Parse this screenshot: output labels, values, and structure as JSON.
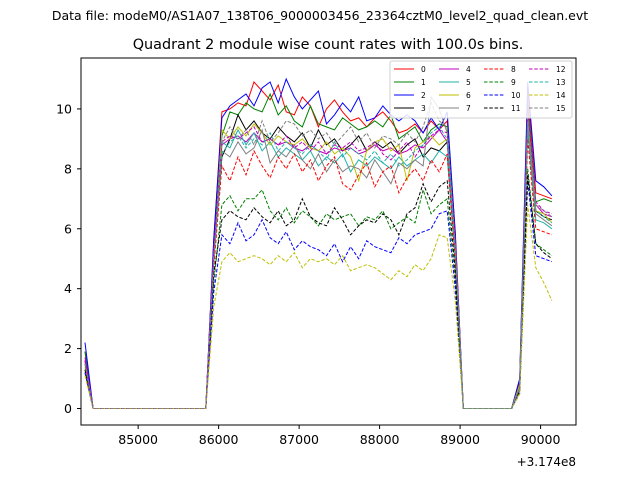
{
  "figure": {
    "suptitle": "Data file: modeM0/AS1A07_138T06_9000003456_23364cztM0_level2_quad_clean.evt",
    "title": "Quadrant 2 module wise count rates with 100.0s bins.",
    "offset_label": "+3.174e8"
  },
  "chart_data": {
    "type": "line",
    "title": "Quadrant 2 module wise count rates with 100.0s bins.",
    "xlabel": "",
    "ylabel": "",
    "x_offset": 317400000,
    "xlim": [
      84290,
      90440
    ],
    "ylim": [
      -0.55,
      11.7
    ],
    "xticks": [
      85000,
      86000,
      87000,
      88000,
      89000,
      90000
    ],
    "xtick_labels": [
      "85000",
      "86000",
      "87000",
      "88000",
      "89000",
      "90000"
    ],
    "yticks": [
      0,
      2,
      4,
      6,
      8,
      10
    ],
    "ytick_labels": [
      "0",
      "2",
      "4",
      "6",
      "8",
      "10"
    ],
    "grid": false,
    "legend_position": "top-right",
    "x": [
      84340,
      84440,
      84540,
      84640,
      84740,
      84840,
      84940,
      85040,
      85140,
      85240,
      85340,
      85440,
      85540,
      85640,
      85740,
      85840,
      85940,
      86040,
      86140,
      86240,
      86340,
      86440,
      86540,
      86640,
      86740,
      86840,
      86940,
      87040,
      87140,
      87240,
      87340,
      87440,
      87540,
      87640,
      87740,
      87840,
      87940,
      88040,
      88140,
      88240,
      88340,
      88440,
      88540,
      88640,
      88740,
      88840,
      88940,
      89040,
      89140,
      89240,
      89340,
      89440,
      89540,
      89640,
      89740,
      89840,
      89940,
      90040,
      90140
    ],
    "series": [
      {
        "name": "0",
        "color": "#ff0000",
        "dash": false,
        "values": [
          1.9,
          0,
          0,
          0,
          0,
          0,
          0,
          0,
          0,
          0,
          0,
          0,
          0,
          0,
          0,
          0,
          5.6,
          9.9,
          10.0,
          10.2,
          10.1,
          10.9,
          10.6,
          10.3,
          10.8,
          9.9,
          9.8,
          10.4,
          10.1,
          9.4,
          10.0,
          10.3,
          9.9,
          9.6,
          9.7,
          9.4,
          9.7,
          9.9,
          9.6,
          9.2,
          9.3,
          9.5,
          9.2,
          9.6,
          9.3,
          9.6,
          5.9,
          0,
          0,
          0,
          0,
          0,
          0,
          0,
          0.9,
          10.6,
          7.2,
          7.1,
          7.0
        ]
      },
      {
        "name": "1",
        "color": "#008000",
        "dash": false,
        "values": [
          1.9,
          0,
          0,
          0,
          0,
          0,
          0,
          0,
          0,
          0,
          0,
          0,
          0,
          0,
          0,
          0,
          5.5,
          9.1,
          9.9,
          9.8,
          10.2,
          10.0,
          9.9,
          10.5,
          9.8,
          10.1,
          9.6,
          9.4,
          10.1,
          9.5,
          9.4,
          9.3,
          9.7,
          9.5,
          9.3,
          9.4,
          9.6,
          9.4,
          9.8,
          9.0,
          9.2,
          9.4,
          8.9,
          9.3,
          9.5,
          9.4,
          5.6,
          0,
          0,
          0,
          0,
          0,
          0,
          0,
          0.8,
          10.2,
          6.9,
          7.0,
          6.9
        ]
      },
      {
        "name": "2",
        "color": "#0000ff",
        "dash": false,
        "values": [
          2.2,
          0,
          0,
          0,
          0,
          0,
          0,
          0,
          0,
          0,
          0,
          0,
          0,
          0,
          0,
          0,
          5.7,
          9.7,
          10.1,
          10.3,
          10.5,
          10.1,
          10.7,
          10.9,
          10.2,
          11.0,
          10.4,
          10.0,
          10.3,
          10.6,
          9.5,
          9.8,
          10.2,
          9.9,
          10.4,
          9.6,
          9.7,
          10.1,
          9.8,
          9.6,
          9.8,
          9.6,
          9.2,
          9.7,
          9.3,
          9.9,
          5.8,
          0,
          0,
          0,
          0,
          0,
          0,
          0,
          1.0,
          10.9,
          7.6,
          7.4,
          7.1
        ]
      },
      {
        "name": "3",
        "color": "#000000",
        "dash": false,
        "values": [
          1.6,
          0,
          0,
          0,
          0,
          0,
          0,
          0,
          0,
          0,
          0,
          0,
          0,
          0,
          0,
          0,
          5.1,
          8.4,
          9.0,
          9.8,
          9.3,
          9.6,
          9.2,
          9.0,
          9.4,
          9.1,
          8.9,
          9.2,
          8.7,
          9.3,
          8.8,
          9.0,
          8.6,
          8.8,
          9.1,
          8.6,
          8.9,
          8.7,
          8.9,
          8.5,
          8.8,
          9.0,
          8.4,
          8.7,
          8.6,
          8.9,
          5.2,
          0,
          0,
          0,
          0,
          0,
          0,
          0,
          0.8,
          9.7,
          6.6,
          6.4,
          6.3
        ]
      },
      {
        "name": "4",
        "color": "#bf00bf",
        "dash": false,
        "values": [
          1.7,
          0,
          0,
          0,
          0,
          0,
          0,
          0,
          0,
          0,
          0,
          0,
          0,
          0,
          0,
          0,
          5.2,
          8.8,
          9.0,
          9.1,
          8.9,
          9.2,
          8.9,
          9.0,
          8.8,
          8.9,
          8.7,
          8.6,
          8.8,
          8.6,
          8.5,
          8.7,
          8.6,
          8.7,
          8.5,
          8.6,
          8.8,
          8.6,
          8.7,
          8.5,
          8.6,
          8.8,
          8.7,
          9.0,
          9.3,
          8.9,
          5.3,
          0,
          0,
          0,
          0,
          0,
          0,
          0,
          0.8,
          9.9,
          6.8,
          6.5,
          6.4
        ]
      },
      {
        "name": "5",
        "color": "#20b2aa",
        "dash": false,
        "values": [
          1.5,
          0,
          0,
          0,
          0,
          0,
          0,
          0,
          0,
          0,
          0,
          0,
          0,
          0,
          0,
          0,
          4.9,
          8.9,
          8.7,
          9.3,
          8.8,
          9.2,
          8.6,
          8.9,
          8.4,
          8.7,
          8.5,
          8.3,
          8.6,
          8.1,
          8.4,
          8.2,
          8.5,
          7.9,
          8.3,
          8.1,
          8.4,
          8.2,
          8.0,
          8.4,
          8.1,
          8.3,
          8.5,
          8.2,
          8.6,
          8.4,
          5.0,
          0,
          0,
          0,
          0,
          0,
          0,
          0,
          0.7,
          9.3,
          6.3,
          6.2,
          6.0
        ]
      },
      {
        "name": "6",
        "color": "#bfbf00",
        "dash": false,
        "values": [
          1.4,
          0,
          0,
          0,
          0,
          0,
          0,
          0,
          0,
          0,
          0,
          0,
          0,
          0,
          0,
          0,
          5.0,
          9.3,
          9.0,
          9.4,
          9.1,
          9.5,
          9.2,
          8.8,
          9.1,
          8.9,
          8.8,
          9.0,
          8.7,
          8.6,
          8.9,
          8.5,
          8.7,
          8.4,
          7.6,
          8.6,
          8.9,
          9.0,
          8.6,
          8.8,
          7.6,
          8.7,
          8.9,
          9.1,
          8.8,
          9.0,
          5.4,
          0,
          0,
          0,
          0,
          0,
          0,
          0,
          0.8,
          9.6,
          6.6,
          6.5,
          6.2
        ]
      },
      {
        "name": "7",
        "color": "#808080",
        "dash": false,
        "values": [
          1.5,
          0,
          0,
          0,
          0,
          0,
          0,
          0,
          0,
          0,
          0,
          0,
          0,
          0,
          0,
          0,
          5.0,
          8.6,
          8.4,
          8.9,
          8.5,
          8.7,
          9.3,
          8.2,
          8.6,
          8.4,
          8.8,
          8.3,
          8.0,
          8.5,
          7.9,
          8.3,
          7.9,
          8.1,
          8.0,
          7.7,
          8.3,
          7.9,
          7.5,
          8.2,
          8.0,
          8.3,
          8.1,
          10.4,
          10.0,
          9.2,
          5.3,
          0,
          0,
          0,
          0,
          0,
          0,
          0,
          0.7,
          9.4,
          6.5,
          6.3,
          6.1
        ]
      },
      {
        "name": "8",
        "color": "#ff0000",
        "dash": true,
        "values": [
          1.3,
          0,
          0,
          0,
          0,
          0,
          0,
          0,
          0,
          0,
          0,
          0,
          0,
          0,
          0,
          0,
          4.7,
          8.1,
          7.6,
          8.4,
          7.8,
          8.6,
          8.1,
          7.7,
          8.4,
          8.0,
          8.5,
          7.9,
          8.3,
          7.6,
          8.1,
          8.4,
          7.5,
          7.3,
          7.8,
          8.2,
          7.4,
          7.9,
          8.1,
          7.2,
          7.7,
          8.0,
          7.6,
          8.3,
          7.9,
          8.5,
          4.9,
          0,
          0,
          0,
          0,
          0,
          0,
          0,
          0.6,
          9.0,
          6.0,
          5.9,
          5.8
        ]
      },
      {
        "name": "9",
        "color": "#008000",
        "dash": true,
        "values": [
          1.2,
          0,
          0,
          0,
          0,
          0,
          0,
          0,
          0,
          0,
          0,
          0,
          0,
          0,
          0,
          0,
          4.2,
          6.8,
          7.1,
          6.6,
          7.0,
          7.0,
          7.3,
          6.6,
          6.3,
          6.7,
          6.2,
          6.6,
          6.4,
          6.1,
          6.5,
          6.3,
          6.4,
          6.5,
          6.1,
          6.4,
          6.3,
          6.6,
          6.0,
          6.2,
          6.4,
          6.2,
          7.3,
          6.5,
          6.8,
          7.0,
          4.3,
          0,
          0,
          0,
          0,
          0,
          0,
          0,
          0.6,
          8.0,
          5.5,
          5.3,
          5.1
        ]
      },
      {
        "name": "10",
        "color": "#0000ff",
        "dash": true,
        "values": [
          1.2,
          0,
          0,
          0,
          0,
          0,
          0,
          0,
          0,
          0,
          0,
          0,
          0,
          0,
          0,
          0,
          3.9,
          5.8,
          5.5,
          6.2,
          5.6,
          5.8,
          6.3,
          5.7,
          5.5,
          5.9,
          5.3,
          5.6,
          5.4,
          5.3,
          5.1,
          5.5,
          4.9,
          5.4,
          5.0,
          5.6,
          5.4,
          5.3,
          5.2,
          5.7,
          5.5,
          5.8,
          5.9,
          6.0,
          6.5,
          6.6,
          4.0,
          0,
          0,
          0,
          0,
          0,
          0,
          0,
          0.5,
          7.6,
          5.1,
          5.0,
          4.9
        ]
      },
      {
        "name": "11",
        "color": "#000000",
        "dash": true,
        "values": [
          1.3,
          0,
          0,
          0,
          0,
          0,
          0,
          0,
          0,
          0,
          0,
          0,
          0,
          0,
          0,
          0,
          4.5,
          6.3,
          6.6,
          6.4,
          6.3,
          6.7,
          6.4,
          6.2,
          6.6,
          6.1,
          6.3,
          7.0,
          6.4,
          6.2,
          6.1,
          6.7,
          6.3,
          5.8,
          6.1,
          6.3,
          6.2,
          6.5,
          6.3,
          5.8,
          6.5,
          6.7,
          7.5,
          6.9,
          7.4,
          7.6,
          4.6,
          0,
          0,
          0,
          0,
          0,
          0,
          0,
          0.6,
          7.8,
          5.5,
          5.2,
          5.0
        ]
      },
      {
        "name": "12",
        "color": "#bf00bf",
        "dash": true,
        "values": [
          1.6,
          0,
          0,
          0,
          0,
          0,
          0,
          0,
          0,
          0,
          0,
          0,
          0,
          0,
          0,
          0,
          5.3,
          8.9,
          9.1,
          9.0,
          9.2,
          9.4,
          8.9,
          9.0,
          8.8,
          9.1,
          8.7,
          8.9,
          8.6,
          8.9,
          8.5,
          8.8,
          8.7,
          8.9,
          8.6,
          8.7,
          8.9,
          8.5,
          8.3,
          8.6,
          8.9,
          8.4,
          8.8,
          9.1,
          9.3,
          9.2,
          5.5,
          0,
          0,
          0,
          0,
          0,
          0,
          0,
          0.7,
          10.0,
          6.9,
          6.6,
          6.5
        ]
      },
      {
        "name": "13",
        "color": "#20b2aa",
        "dash": true,
        "values": [
          1.5,
          0,
          0,
          0,
          0,
          0,
          0,
          0,
          0,
          0,
          0,
          0,
          0,
          0,
          0,
          0,
          5.0,
          8.5,
          8.9,
          9.1,
          8.7,
          9.0,
          8.8,
          9.2,
          8.6,
          8.9,
          8.7,
          8.5,
          8.8,
          8.6,
          8.3,
          8.9,
          8.4,
          8.7,
          8.5,
          8.3,
          8.6,
          8.2,
          8.5,
          8.1,
          8.3,
          8.6,
          8.8,
          9.2,
          9.4,
          9.0,
          5.2,
          0,
          0,
          0,
          0,
          0,
          0,
          0,
          0.7,
          9.5,
          6.6,
          6.4,
          6.2
        ]
      },
      {
        "name": "14",
        "color": "#bfbf00",
        "dash": true,
        "values": [
          1.1,
          0,
          0,
          0,
          0,
          0,
          0,
          0,
          0,
          0,
          0,
          0,
          0,
          0,
          0,
          0,
          3.4,
          4.9,
          5.2,
          4.9,
          5.0,
          5.1,
          5.0,
          4.8,
          5.1,
          4.9,
          5.2,
          4.7,
          5.0,
          4.9,
          5.0,
          4.8,
          5.1,
          4.6,
          4.7,
          4.8,
          4.7,
          4.5,
          4.3,
          4.6,
          4.4,
          4.8,
          4.6,
          5.0,
          5.8,
          5.7,
          3.6,
          0,
          0,
          0,
          0,
          0,
          0,
          0,
          0.5,
          6.8,
          4.7,
          4.2,
          3.6
        ]
      },
      {
        "name": "15",
        "color": "#808080",
        "dash": true,
        "values": [
          1.5,
          0,
          0,
          0,
          0,
          0,
          0,
          0,
          0,
          0,
          0,
          0,
          0,
          0,
          0,
          0,
          5.1,
          8.9,
          9.4,
          9.0,
          9.3,
          8.8,
          9.6,
          8.9,
          9.2,
          9.6,
          9.5,
          9.1,
          9.3,
          9.0,
          9.2,
          8.8,
          9.1,
          9.4,
          8.9,
          9.2,
          8.7,
          9.1,
          9.0,
          8.8,
          9.2,
          8.9,
          9.4,
          10.2,
          9.6,
          9.4,
          5.4,
          0,
          0,
          0,
          0,
          0,
          0,
          0,
          0.7,
          9.8,
          6.8,
          6.6,
          6.4
        ]
      }
    ]
  }
}
